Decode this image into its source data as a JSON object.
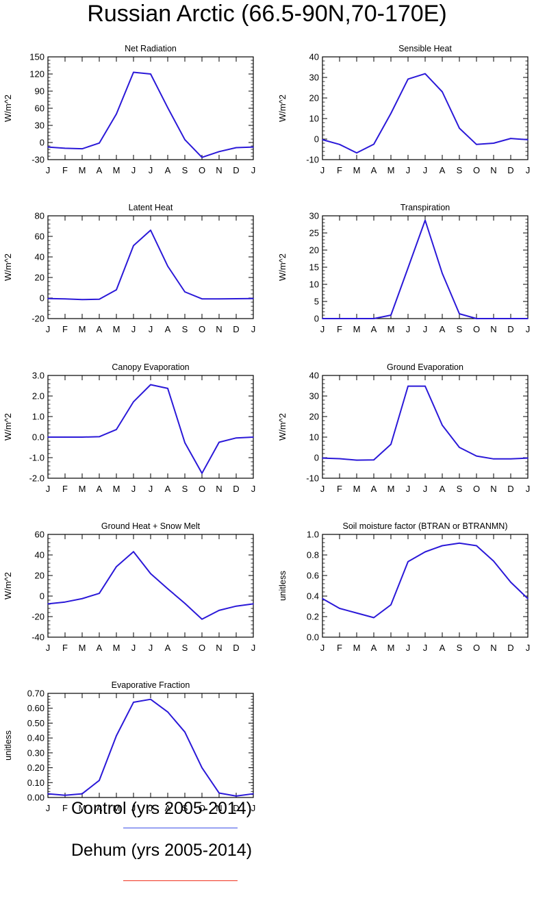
{
  "title": "Russian Arctic (66.5-90N,70-170E)",
  "months": [
    "J",
    "F",
    "M",
    "A",
    "M",
    "J",
    "J",
    "A",
    "S",
    "O",
    "N",
    "D",
    "J"
  ],
  "legend": [
    {
      "label": "Control (yrs 2005-2014)",
      "color": "#3b4fe6"
    },
    {
      "label": "Dehum (yrs 2005-2014)",
      "color": "#f0321e"
    }
  ],
  "line_color": "#2a18d8",
  "chart_data": [
    {
      "type": "line",
      "title": "Net Radiation",
      "ylabel": "W/m^2",
      "ylim": [
        -30,
        150
      ],
      "yticks": [
        -30,
        0,
        30,
        60,
        90,
        120,
        150
      ],
      "ytick_labels": [
        "-30",
        "0",
        "30",
        "60",
        "90",
        "120",
        "150"
      ],
      "series": [
        {
          "values": [
            -8,
            -10,
            -11,
            -1,
            50,
            123,
            120,
            61,
            5,
            -26,
            -16,
            -9,
            -8
          ]
        }
      ]
    },
    {
      "type": "line",
      "title": "Sensible Heat",
      "ylabel": "W/m^2",
      "ylim": [
        -10,
        40
      ],
      "yticks": [
        -10,
        0,
        10,
        20,
        30,
        40
      ],
      "ytick_labels": [
        "-10",
        "0",
        "10",
        "20",
        "30",
        "40"
      ],
      "series": [
        {
          "values": [
            -0.3,
            -2.6,
            -6.7,
            -2.5,
            12.5,
            29.2,
            31.8,
            23,
            5.3,
            -2.6,
            -2,
            0.3,
            -0.3
          ]
        }
      ]
    },
    {
      "type": "line",
      "title": "Latent Heat",
      "ylabel": "W/m^2",
      "ylim": [
        -20,
        80
      ],
      "yticks": [
        -20,
        0,
        20,
        40,
        60,
        80
      ],
      "ytick_labels": [
        "-20",
        "0",
        "20",
        "40",
        "60",
        "80"
      ],
      "series": [
        {
          "values": [
            -0.5,
            -0.8,
            -1.5,
            -1.2,
            8,
            51,
            66,
            31,
            6,
            -0.8,
            -0.8,
            -0.7,
            -0.5
          ]
        }
      ]
    },
    {
      "type": "line",
      "title": "Transpiration",
      "ylabel": "W/m^2",
      "ylim": [
        0,
        30
      ],
      "yticks": [
        0,
        5,
        10,
        15,
        20,
        25,
        30
      ],
      "ytick_labels": [
        "0",
        "5",
        "10",
        "15",
        "20",
        "25",
        "30"
      ],
      "series": [
        {
          "values": [
            0,
            0,
            0,
            0,
            1,
            14.8,
            28.7,
            13.2,
            1.4,
            0,
            0,
            0,
            0
          ]
        }
      ]
    },
    {
      "type": "line",
      "title": "Canopy Evaporation",
      "ylabel": "W/m^2",
      "ylim": [
        -2,
        3
      ],
      "yticks": [
        -2,
        -1,
        0,
        1,
        2,
        3
      ],
      "ytick_labels": [
        "-2.0",
        "-1.0",
        "0.0",
        "1.0",
        "2.0",
        "3.0"
      ],
      "series": [
        {
          "values": [
            0,
            0,
            0,
            0.02,
            0.37,
            1.72,
            2.55,
            2.37,
            -0.27,
            -1.76,
            -0.25,
            -0.04,
            0
          ]
        }
      ]
    },
    {
      "type": "line",
      "title": "Ground Evaporation",
      "ylabel": "W/m^2",
      "ylim": [
        -10,
        40
      ],
      "yticks": [
        -10,
        0,
        10,
        20,
        30,
        40
      ],
      "ytick_labels": [
        "-10",
        "0",
        "10",
        "20",
        "30",
        "40"
      ],
      "series": [
        {
          "values": [
            -0.2,
            -0.5,
            -1.2,
            -1.1,
            6.5,
            34.8,
            34.8,
            15.8,
            5,
            0.8,
            -0.6,
            -0.6,
            -0.2
          ]
        }
      ]
    },
    {
      "type": "line",
      "title": "Ground Heat + Snow Melt",
      "ylabel": "W/m^2",
      "ylim": [
        -40,
        60
      ],
      "yticks": [
        -40,
        -20,
        0,
        20,
        40,
        60
      ],
      "ytick_labels": [
        "-40",
        "-20",
        "0",
        "20",
        "40",
        "60"
      ],
      "series": [
        {
          "values": [
            -7.6,
            -5.8,
            -2.5,
            2.6,
            28.6,
            43.2,
            21.8,
            7.1,
            -7.1,
            -22.5,
            -13.9,
            -9.8,
            -7.6
          ]
        }
      ]
    },
    {
      "type": "line",
      "title": "Soil moisture factor (BTRAN or BTRANMN)",
      "ylabel": "unitless",
      "ylim": [
        0,
        1
      ],
      "yticks": [
        0,
        0.2,
        0.4,
        0.6,
        0.8,
        1
      ],
      "ytick_labels": [
        "0.0",
        "0.2",
        "0.4",
        "0.6",
        "0.8",
        "1.0"
      ],
      "series": [
        {
          "values": [
            0.375,
            0.28,
            0.235,
            0.19,
            0.315,
            0.735,
            0.83,
            0.89,
            0.915,
            0.89,
            0.74,
            0.535,
            0.375
          ]
        }
      ]
    },
    {
      "type": "line",
      "title": "Evaporative Fraction",
      "ylabel": "unitless",
      "ylim": [
        0,
        0.7
      ],
      "yticks": [
        0,
        0.1,
        0.2,
        0.3,
        0.4,
        0.5,
        0.6,
        0.7
      ],
      "ytick_labels": [
        "0.00",
        "0.10",
        "0.20",
        "0.30",
        "0.40",
        "0.50",
        "0.60",
        "0.70"
      ],
      "series": [
        {
          "values": [
            0.025,
            0.015,
            0.025,
            0.115,
            0.415,
            0.64,
            0.66,
            0.575,
            0.44,
            0.2,
            0.03,
            0.01,
            0.025
          ]
        }
      ]
    }
  ]
}
